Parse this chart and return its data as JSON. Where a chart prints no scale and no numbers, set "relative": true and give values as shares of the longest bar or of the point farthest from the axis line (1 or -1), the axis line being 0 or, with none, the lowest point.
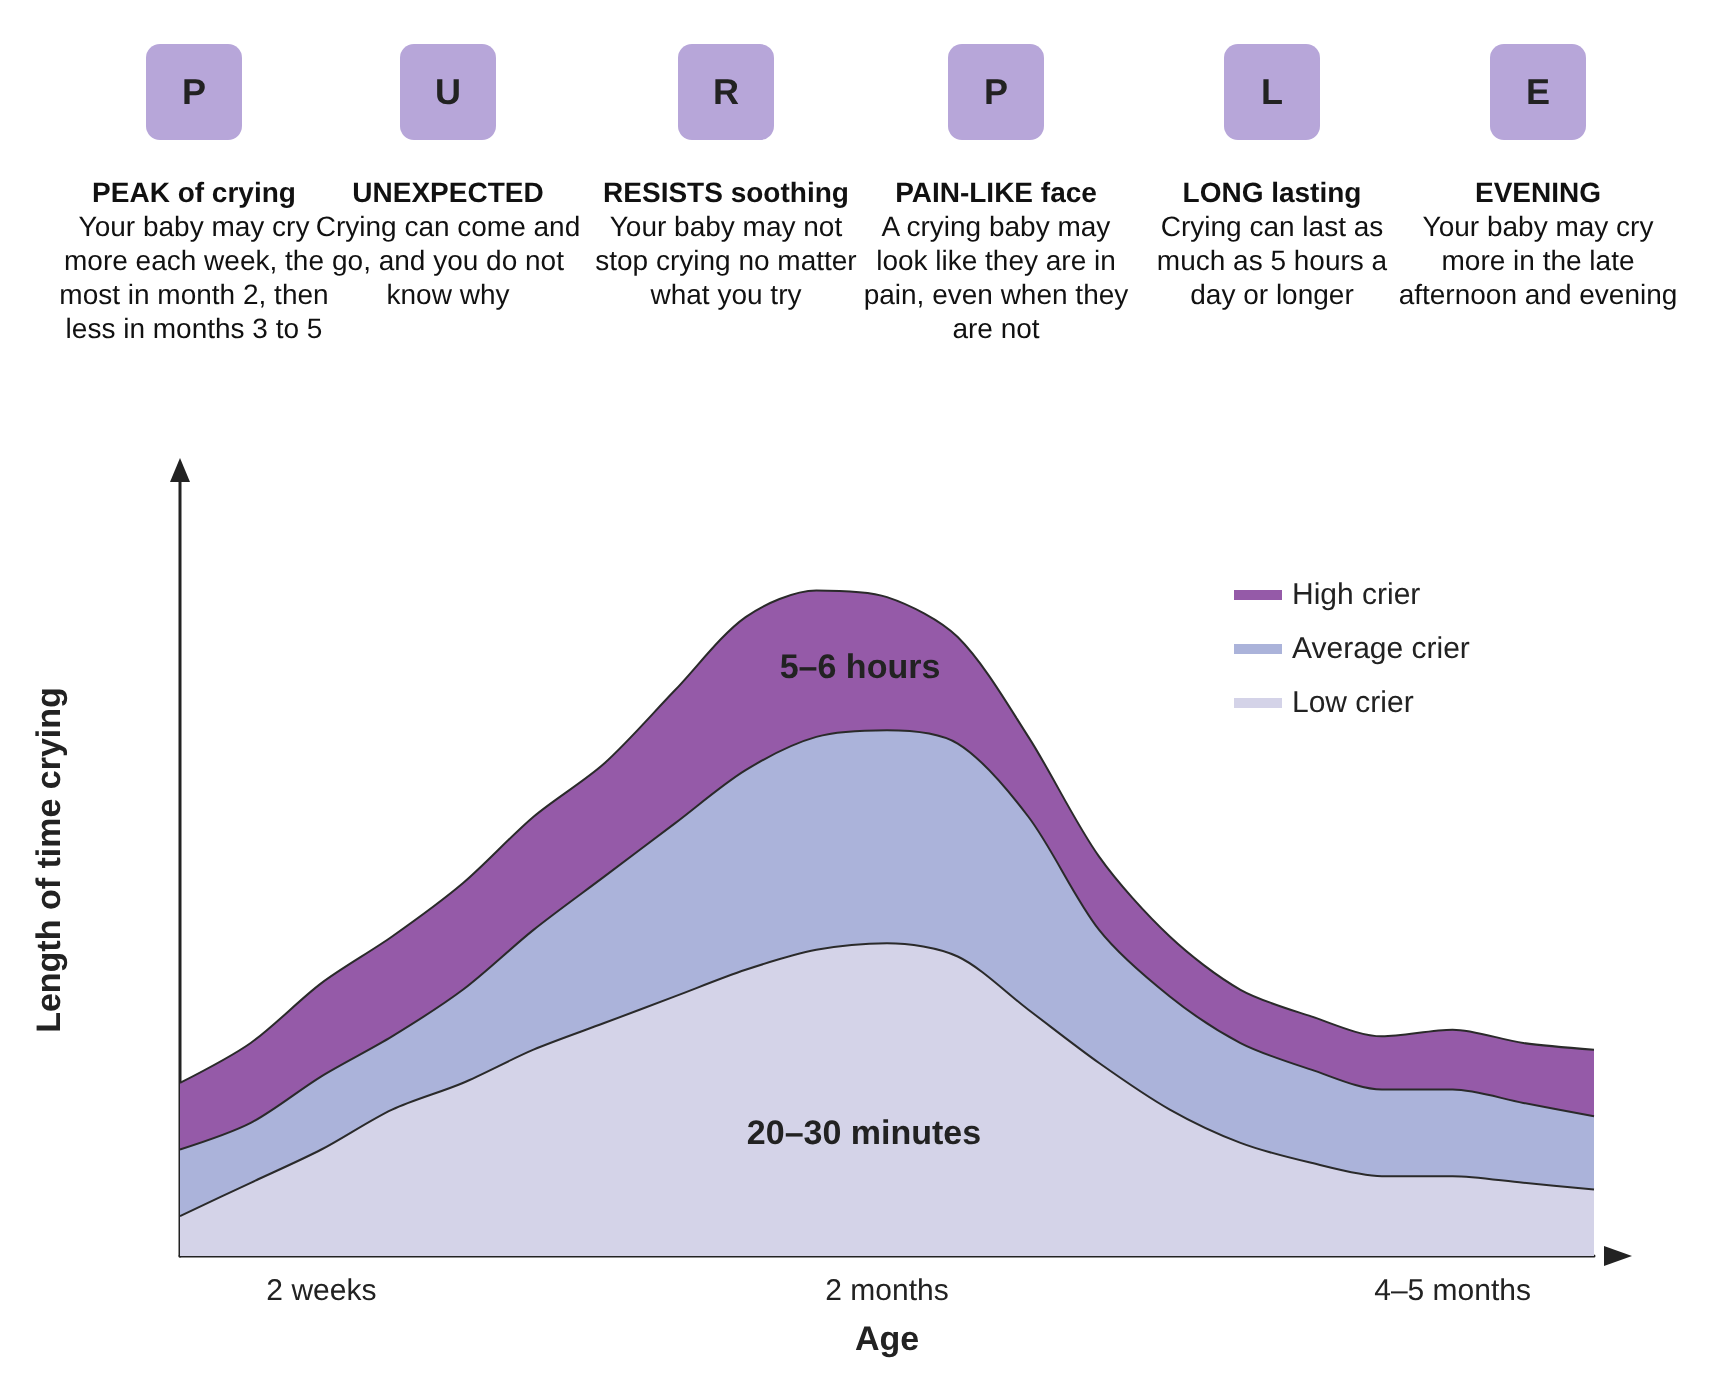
{
  "chart_data": {
    "type": "area",
    "relative": true,
    "stacked": true,
    "xlabel": "Age",
    "ylabel": "Length of time crying",
    "legend": "top right",
    "categories": [
      null,
      null,
      "2 weeks",
      null,
      null,
      null,
      null,
      null,
      null,
      null,
      "2 months",
      null,
      null,
      null,
      null,
      null,
      null,
      null,
      "4–5 months",
      null,
      null
    ],
    "series": [
      {
        "name": "Low crier",
        "color": "#d4d3e8",
        "values": [
          0.06,
          0.11,
          0.16,
          0.22,
          0.26,
          0.31,
          0.35,
          0.39,
          0.43,
          0.46,
          0.47,
          0.45,
          0.37,
          0.29,
          0.22,
          0.17,
          0.14,
          0.12,
          0.12,
          0.11,
          0.1
        ]
      },
      {
        "name": "Average crier",
        "color": "#abb3da",
        "values": [
          0.1,
          0.09,
          0.11,
          0.11,
          0.14,
          0.18,
          0.22,
          0.26,
          0.3,
          0.32,
          0.32,
          0.32,
          0.29,
          0.2,
          0.17,
          0.15,
          0.14,
          0.13,
          0.13,
          0.12,
          0.11
        ]
      },
      {
        "name": "High crier",
        "color": "#955aa8",
        "values": [
          0.1,
          0.12,
          0.14,
          0.15,
          0.16,
          0.17,
          0.17,
          0.2,
          0.23,
          0.22,
          0.2,
          0.16,
          0.12,
          0.11,
          0.09,
          0.08,
          0.08,
          0.08,
          0.09,
          0.09,
          0.1
        ]
      }
    ],
    "annotations": [
      "P",
      "PEAK of crying",
      "Your baby may cry more each week, the most in month 2, then less in months 3 to 5",
      "U",
      "UNEXPECTED",
      "Crying can come and go, and you do not know why",
      "R",
      "RESISTS soothing",
      "Your baby may not stop crying no matter what you try",
      "P",
      "PAIN-LIKE face",
      "A crying baby may look like they are in pain, even when they are not",
      "L",
      "LONG lasting",
      "Crying can last as much as 5 hours a day or longer",
      "E",
      "EVENING",
      "Your baby may cry more in the late afternoon and evening",
      "5–6 hours",
      "20–30 minutes"
    ]
  }
}
